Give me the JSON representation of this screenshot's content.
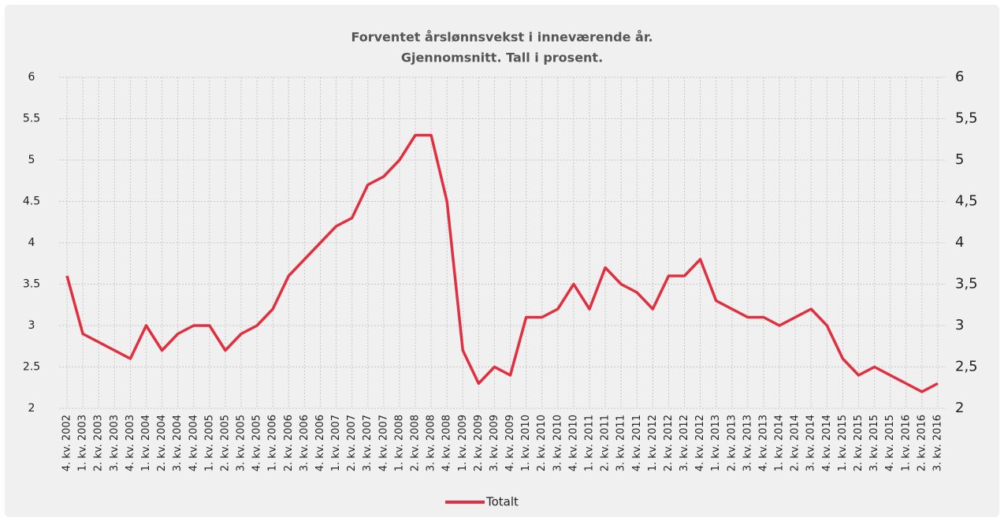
{
  "chart_data": {
    "type": "line",
    "title": [
      "Forventet årslønnsvekst i inneværende år.",
      "Gjennomsnitt. Tall i prosent."
    ],
    "categories": [
      "4. kv. 2002",
      "1. kv. 2003",
      "2. kv. 2003",
      "3. kv. 2003",
      "4. kv. 2003",
      "1. kv. 2004",
      "2. kv. 2004",
      "3. kv. 2004",
      "4. kv. 2004",
      "1. kv. 2005",
      "2. kv. 2005",
      "3. kv. 2005",
      "4. kv. 2005",
      "1. kv. 2006",
      "2. kv. 2006",
      "3. kv. 2006",
      "4. kv. 2006",
      "1. kv. 2007",
      "2. kv. 2007",
      "3. kv. 2007",
      "4. kv. 2007",
      "1. kv. 2008",
      "2. kv. 2008",
      "3. kv. 2008",
      "4. kv. 2008",
      "1. kv. 2009",
      "2. kv. 2009",
      "3. kv. 2009",
      "4. kv. 2009",
      "1. kv. 2010",
      "2. kv. 2010",
      "3. kv. 2010",
      "4. kv. 2010",
      "1. kv. 2011",
      "2. kv. 2011",
      "3. kv. 2011",
      "4. kv. 2011",
      "1. kv. 2012",
      "2. kv. 2012",
      "3. kv. 2012",
      "4. kv. 2012",
      "1. kv. 2013",
      "2. kv. 2013",
      "3. kv. 2013",
      "4. kv. 2013",
      "1. kv. 2014",
      "2. kv. 2014",
      "3. kv. 2014",
      "4. kv. 2014",
      "1. kv. 2015",
      "2. kv. 2015",
      "3. kv. 2015",
      "4. kv. 2015",
      "1. kv. 2016",
      "2. kv. 2016",
      "3. kv. 2016"
    ],
    "series": [
      {
        "name": "Totalt",
        "color": "#e03040",
        "values": [
          3.6,
          2.9,
          2.8,
          2.7,
          2.6,
          3.0,
          2.7,
          2.9,
          3.0,
          3.0,
          2.7,
          2.9,
          3.0,
          3.2,
          3.6,
          3.8,
          4.0,
          4.2,
          4.3,
          4.7,
          4.8,
          5.0,
          5.3,
          5.3,
          4.5,
          2.7,
          2.3,
          2.5,
          2.4,
          3.1,
          3.1,
          3.2,
          3.5,
          3.2,
          3.7,
          3.5,
          3.4,
          3.2,
          3.6,
          3.6,
          3.8,
          3.3,
          3.2,
          3.1,
          3.1,
          3.0,
          3.1,
          3.2,
          3.0,
          2.6,
          2.4,
          2.5,
          2.4,
          2.3,
          2.2,
          2.3
        ]
      }
    ],
    "ylim": [
      2,
      6
    ],
    "yticks": [
      2,
      2.5,
      3,
      3.5,
      4,
      4.5,
      5,
      5.5,
      6
    ],
    "y2lim": [
      2,
      6
    ],
    "y2ticks": [
      2,
      {
        "value": 2.5,
        "label": "2,5"
      },
      3,
      {
        "value": 3.5,
        "label": "3,5"
      },
      4,
      {
        "value": 4.5,
        "label": "4,5"
      },
      5,
      {
        "value": 5.5,
        "label": "5,5"
      },
      6
    ],
    "grid": true,
    "legend": "bottom"
  }
}
